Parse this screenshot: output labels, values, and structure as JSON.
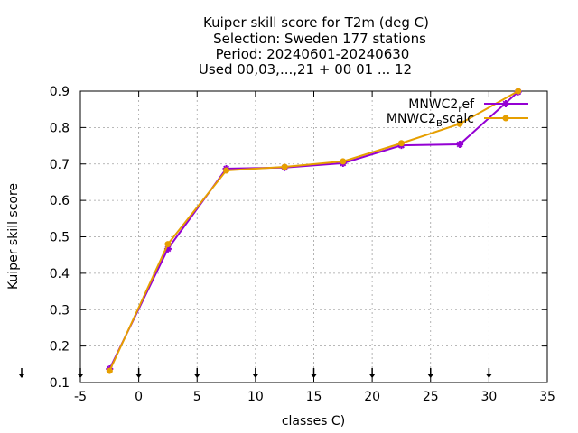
{
  "chart_data": {
    "type": "line",
    "title_lines": [
      "Kuiper skill score  for T2m (deg C)",
      "Selection: Sweden    177 stations",
      "Period: 20240601-20240630",
      "Used 00,03,...,21 + 00 01 ... 12"
    ],
    "xlabel": "classes C)",
    "ylabel": "Kuiper skill score",
    "xlim": [
      -5,
      35
    ],
    "ylim": [
      0.1,
      0.9
    ],
    "xticks": [
      "-5",
      "0",
      "5",
      "10",
      "15",
      "20",
      "25",
      "30",
      "35"
    ],
    "yticks": [
      "0.1",
      "0.2",
      "0.3",
      "0.4",
      "0.5",
      "0.6",
      "0.7",
      "0.8",
      "0.9"
    ],
    "grid": true,
    "legend_position": "top-right",
    "class_markers_x": [
      -2.5,
      2.5,
      7.5,
      12.5,
      17.5,
      22.5,
      27.5,
      32.5
    ],
    "series": [
      {
        "name": "MNWC2_ref",
        "legend_main": "MNWC2",
        "legend_sub": "r",
        "legend_tail": "ef",
        "color": "#9400d3",
        "marker": "star",
        "x": [
          -2.5,
          2.5,
          7.5,
          12.5,
          17.5,
          22.5,
          27.5,
          32.5
        ],
        "y": [
          0.137,
          0.467,
          0.687,
          0.69,
          0.702,
          0.751,
          0.754,
          0.898
        ]
      },
      {
        "name": "MNWC2_Bscalc",
        "legend_main": "MNWC2",
        "legend_sub": "B",
        "legend_tail": "scalc",
        "color": "#e69f00",
        "marker": "circle",
        "x": [
          -2.5,
          2.5,
          7.5,
          12.5,
          17.5,
          22.5,
          27.5,
          32.5
        ],
        "y": [
          0.132,
          0.48,
          0.682,
          0.692,
          0.707,
          0.757,
          0.81,
          0.9
        ]
      }
    ]
  }
}
